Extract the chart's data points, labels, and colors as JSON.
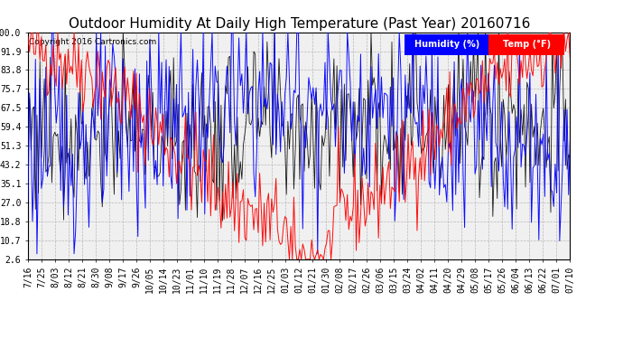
{
  "title": "Outdoor Humidity At Daily High Temperature (Past Year) 20160716",
  "copyright": "Copyright 2016 Cartronics.com",
  "legend_humidity": "Humidity (%)",
  "legend_temp": "Temp (°F)",
  "humidity_color": "#0000ff",
  "temp_color": "#ff0000",
  "black_color": "#000000",
  "background_color": "#ffffff",
  "plot_bg_color": "#f0f0f0",
  "grid_color": "#aaaaaa",
  "yticks": [
    2.6,
    10.7,
    18.8,
    27.0,
    35.1,
    43.2,
    51.3,
    59.4,
    67.5,
    75.7,
    83.8,
    91.9,
    100.0
  ],
  "ymin": 2.6,
  "ymax": 100.0,
  "title_fontsize": 11,
  "axis_fontsize": 7,
  "legend_fontsize": 7,
  "copyright_fontsize": 6.5,
  "xtick_labels": [
    "7/16",
    "7/25",
    "8/03",
    "8/12",
    "8/21",
    "8/30",
    "9/08",
    "9/17",
    "9/26",
    "10/05",
    "10/14",
    "10/23",
    "11/01",
    "11/10",
    "11/19",
    "11/28",
    "12/07",
    "12/16",
    "12/25",
    "01/03",
    "01/12",
    "01/21",
    "01/30",
    "02/08",
    "02/17",
    "02/26",
    "03/06",
    "03/15",
    "03/24",
    "04/02",
    "04/11",
    "04/20",
    "04/29",
    "05/08",
    "05/17",
    "05/26",
    "06/04",
    "06/13",
    "06/22",
    "07/01",
    "07/10"
  ],
  "num_points": 366
}
